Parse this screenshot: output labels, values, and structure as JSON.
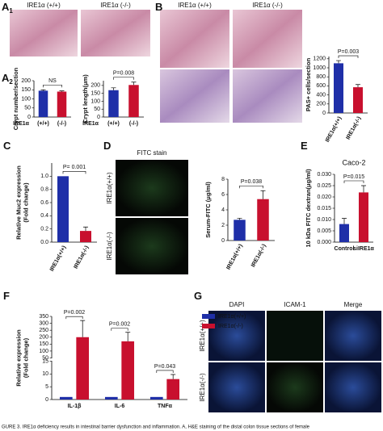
{
  "panel_labels": [
    {
      "letter": "A",
      "sub": "1"
    },
    {
      "letter": "A",
      "sub": "2"
    },
    {
      "letter": "B"
    },
    {
      "letter": "C"
    },
    {
      "letter": "D"
    },
    {
      "letter": "E"
    },
    {
      "letter": "F"
    },
    {
      "letter": "G"
    }
  ],
  "image_labels": {
    "A1": [
      "IRE1α (+/+)",
      "IRE1α (-/-)"
    ],
    "B": [
      "IRE1α (+/+)",
      "IRE1α (-/-)"
    ],
    "D_title": "FITC stain",
    "D_rows": [
      "IRE1α(+/+)",
      "IRE1α(-/-)"
    ],
    "G_cols": [
      "DAPI",
      "ICAM-1",
      "Merge"
    ],
    "G_rows": [
      "IRE1α(+/+)",
      "IRE1α(-/-)"
    ]
  },
  "caption": "GURE 3. IRE1α deficiency results in intestinal barrier dysfunction and inflammation. A, H&E staining of the distal colon tissue sections of female",
  "chart_data": [
    {
      "type": "bar",
      "ylabel": [
        "Crypt number/section"
      ],
      "xlabel": "IRE1α",
      "categories": [
        "(+/+)",
        "(-/-)"
      ],
      "values": [
        145,
        140
      ],
      "errors": [
        5,
        4
      ],
      "colors": [
        "#1f2fa8",
        "#c8102e"
      ],
      "ylim": [
        0,
        200
      ],
      "yticks": [
        0,
        50,
        100,
        150,
        200
      ],
      "annotation": "NS"
    },
    {
      "type": "bar",
      "ylabel": [
        "Crypt length(μm)"
      ],
      "xlabel": "IRE1α",
      "categories": [
        "(+/+)",
        "(-/-)"
      ],
      "values": [
        170,
        203
      ],
      "errors": [
        15,
        18
      ],
      "colors": [
        "#1f2fa8",
        "#c8102e"
      ],
      "ylim": [
        0,
        230
      ],
      "yticks": [
        0,
        50,
        100,
        150,
        200
      ],
      "annotation": "P=0.008"
    },
    {
      "type": "bar",
      "ylabel": [
        "PAS+ cells/section"
      ],
      "categories": [
        "IRE1α(+/+)",
        "IRE1α(-/-)"
      ],
      "values": [
        1100,
        570
      ],
      "errors": [
        60,
        60
      ],
      "colors": [
        "#1f2fa8",
        "#c8102e"
      ],
      "ylim": [
        0,
        1250
      ],
      "yticks": [
        0,
        200,
        400,
        600,
        800,
        1000,
        1200
      ],
      "annotation": "P=0.003"
    },
    {
      "type": "bar",
      "ylabel": [
        "Relative Muc2 expression",
        "(Fold change)"
      ],
      "categories": [
        "IRE1α(+/+)",
        "IRE1α(-/-)"
      ],
      "values": [
        1.0,
        0.17
      ],
      "errors": [
        0,
        0.06
      ],
      "colors": [
        "#1f2fa8",
        "#c8102e"
      ],
      "ylim": [
        0,
        1.2
      ],
      "yticks": [
        {
          "value": 0,
          "label": "0.0"
        },
        {
          "value": 0.2,
          "label": "0.2"
        },
        {
          "value": 0.4,
          "label": "0.4"
        },
        {
          "value": 0.6,
          "label": "0.6"
        },
        {
          "value": 0.8,
          "label": "0.8"
        },
        {
          "value": 1,
          "label": "1.0"
        }
      ],
      "annotation": "P= 0.001"
    },
    {
      "type": "bar",
      "ylabel": [
        "Serum-FITC (μg/ml)"
      ],
      "categories": [
        "IRE1α(+/+)",
        "IRE1α(-/-)"
      ],
      "values": [
        2.7,
        5.4
      ],
      "errors": [
        0.2,
        1.1
      ],
      "colors": [
        "#1f2fa8",
        "#c8102e"
      ],
      "ylim": [
        0,
        8
      ],
      "yticks": [
        0,
        2,
        4,
        6,
        8
      ],
      "annotation": "P=0.038"
    },
    {
      "type": "bar",
      "title": "Caco-2",
      "ylabel": [
        "10 kDa FITC dextran(μg/ml)"
      ],
      "categories": [
        "Control",
        "siIRE1α"
      ],
      "values": [
        0.008,
        0.022
      ],
      "errors": [
        0.0025,
        0.003
      ],
      "colors": [
        "#1f2fa8",
        "#c8102e"
      ],
      "ylim": [
        0,
        0.03
      ],
      "yticks": [
        {
          "value": 0,
          "label": "0.000"
        },
        {
          "value": 0.005,
          "label": "0.005"
        },
        {
          "value": 0.01,
          "label": "0.010"
        },
        {
          "value": 0.015,
          "label": "0.015"
        },
        {
          "value": 0.02,
          "label": "0.020"
        },
        {
          "value": 0.025,
          "label": "0.025"
        },
        {
          "value": 0.03,
          "label": "0.030"
        }
      ],
      "annotation": "P=0.015"
    },
    {
      "type": "grouped-bar",
      "ylabel": [
        "Relative expression",
        "(Fold change)"
      ],
      "categories": [
        "IL-1β",
        "IL-6",
        "TNFα"
      ],
      "series": [
        {
          "name": "IRE1α(+/+)",
          "color": "#1f2fa8",
          "values": [
            1,
            1,
            1
          ],
          "errors": [
            0,
            0,
            0
          ]
        },
        {
          "name": "IRE1α(-/-)",
          "color": "#c8102e",
          "values": [
            200,
            170,
            8
          ],
          "errors": [
            120,
            65,
            1.8
          ]
        }
      ],
      "ylim": [
        0,
        350
      ],
      "axis_break": [
        15,
        50
      ],
      "yticks": [
        0,
        5,
        10,
        15,
        50,
        100,
        150,
        200,
        250,
        300,
        350
      ],
      "annotations": [
        "P=0.002",
        "P=0.002",
        "P=0.043"
      ],
      "legend": "upper right"
    }
  ]
}
